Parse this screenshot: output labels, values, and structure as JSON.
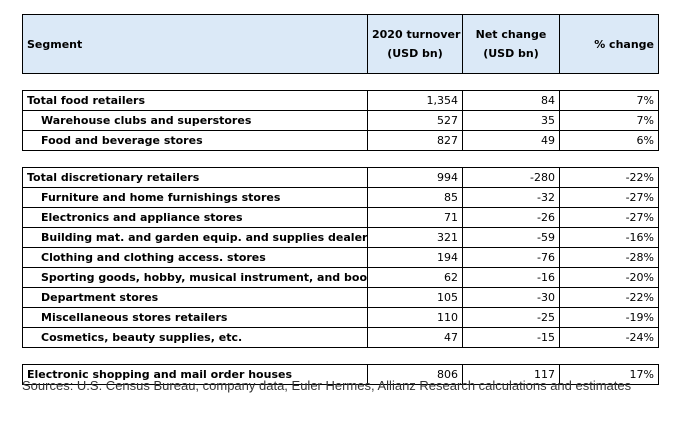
{
  "header": {
    "segment": "Segment",
    "turnover_l1": "2020 turnover",
    "turnover_l2": "(USD bn)",
    "net_l1": "Net change",
    "net_l2": "(USD bn)",
    "pct": "% change"
  },
  "food": {
    "total": {
      "name": "Total food retailers",
      "turnover": "1,354",
      "net": "84",
      "pct": "7%"
    },
    "rows": [
      {
        "name": "Warehouse clubs and superstores",
        "turnover": "527",
        "net": "35",
        "pct": "7%"
      },
      {
        "name": "Food and beverage stores",
        "turnover": "827",
        "net": "49",
        "pct": "6%"
      }
    ]
  },
  "discretionary": {
    "total": {
      "name": "Total discretionary retailers",
      "turnover": "994",
      "net": "-280",
      "pct": "-22%"
    },
    "rows": [
      {
        "name": "Furniture and home furnishings stores",
        "turnover": "85",
        "net": "-32",
        "pct": "-27%"
      },
      {
        "name": "Electronics and appliance stores",
        "turnover": "71",
        "net": "-26",
        "pct": "-27%"
      },
      {
        "name": "Building mat. and garden equip. and supplies dealers",
        "turnover": "321",
        "net": "-59",
        "pct": "-16%"
      },
      {
        "name": "Clothing and clothing access. stores",
        "turnover": "194",
        "net": "-76",
        "pct": "-28%"
      },
      {
        "name": "Sporting goods, hobby, musical instrument, and book",
        "turnover": "62",
        "net": "-16",
        "pct": "-20%"
      },
      {
        "name": "Department stores",
        "turnover": "105",
        "net": "-30",
        "pct": "-22%"
      },
      {
        "name": "Miscellaneous stores retailers",
        "turnover": "110",
        "net": "-25",
        "pct": "-19%"
      },
      {
        "name": "Cosmetics, beauty supplies, etc.",
        "turnover": "47",
        "net": "-15",
        "pct": "-24%"
      }
    ]
  },
  "electronic": {
    "name": "Electronic shopping and mail order houses",
    "turnover": "806",
    "net": "117",
    "pct": "17%"
  },
  "source": "Sources: U.S. Census Bureau, company data, Euler Hermes, Allianz Research calculations and estimates"
}
